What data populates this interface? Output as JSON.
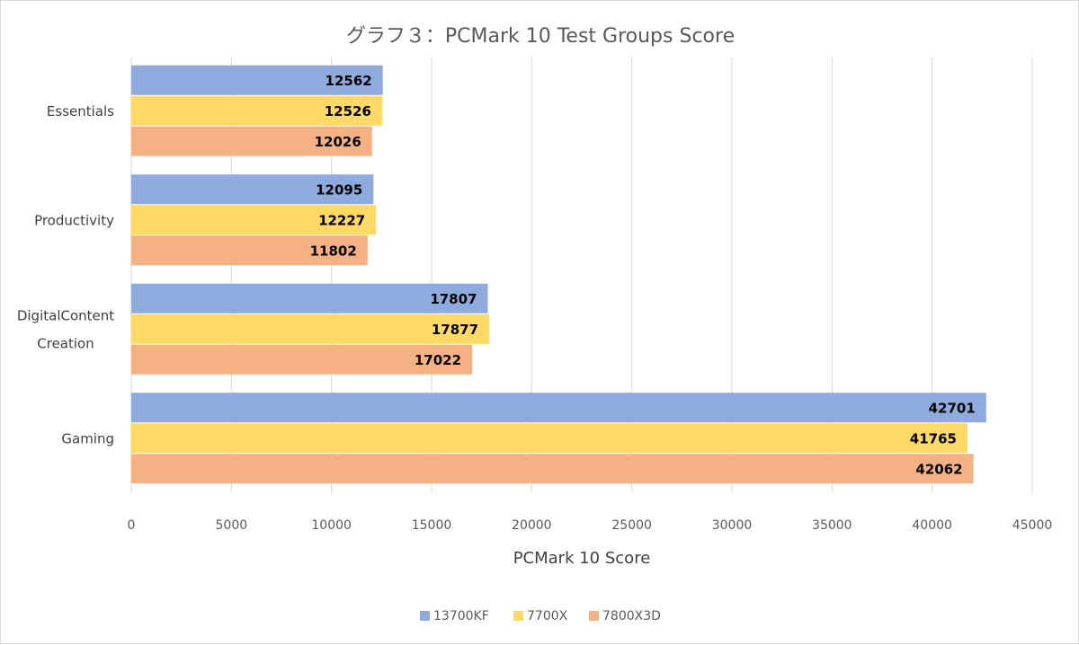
{
  "chart_data": {
    "type": "bar",
    "orientation": "horizontal",
    "title": "グラフ３：PCMark 10 Test Groups Score",
    "xlabel": "PCMark 10 Score",
    "ylabel": "",
    "xlim": [
      0,
      45000
    ],
    "x_ticks": [
      0,
      5000,
      10000,
      15000,
      20000,
      25000,
      30000,
      35000,
      40000,
      45000
    ],
    "x_tick_labels": [
      "0",
      "5000",
      "10000",
      "15000",
      "20000",
      "25000",
      "30000",
      "35000",
      "40000",
      "45000"
    ],
    "grid": "vertical",
    "legend_position": "bottom",
    "categories": [
      [
        "Essentials"
      ],
      [
        "Productivity"
      ],
      [
        "DigitalContent",
        "Creation"
      ],
      [
        "Gaming"
      ]
    ],
    "series": [
      {
        "name": "13700KF",
        "color": "#8faadc",
        "values": [
          12562,
          12095,
          17807,
          42701
        ]
      },
      {
        "name": "7700X",
        "color": "#ffd966",
        "values": [
          12526,
          12227,
          17877,
          41765
        ]
      },
      {
        "name": "7800X3D",
        "color": "#f4b183",
        "values": [
          12026,
          11802,
          17022,
          42062
        ]
      }
    ]
  }
}
